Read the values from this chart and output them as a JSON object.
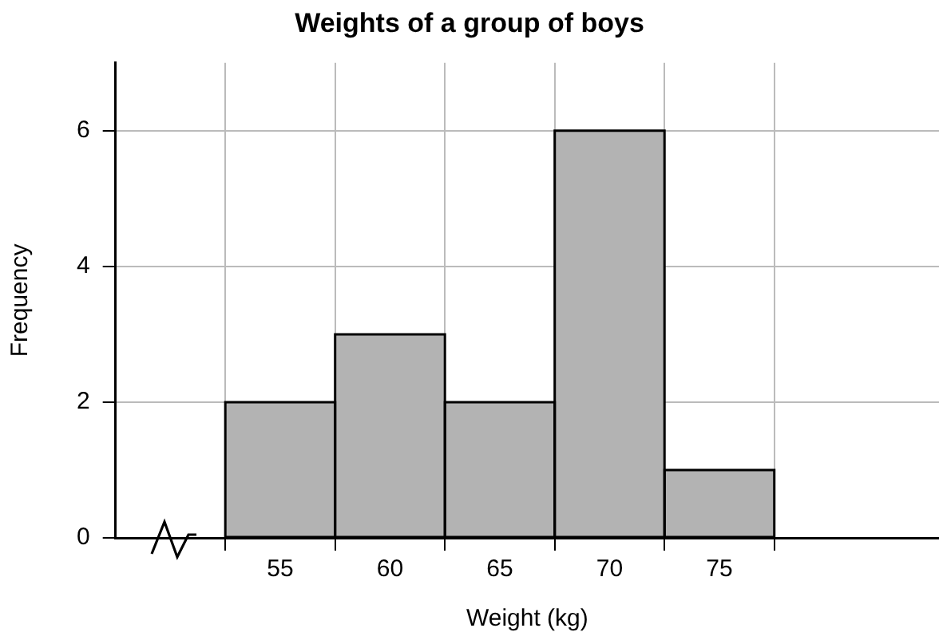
{
  "chart_data": {
    "type": "histogram",
    "title": "Weights of a group of boys",
    "xlabel": "Weight (kg)",
    "ylabel": "Frequency",
    "bins": [
      52.5,
      57.5,
      62.5,
      67.5,
      72.5,
      77.5
    ],
    "values": [
      2,
      3,
      2,
      6,
      1
    ],
    "color": "#b3b3b3",
    "xlim": [
      47.5,
      85
    ],
    "xticks": [
      55,
      60,
      65,
      70,
      75
    ],
    "ylim": [
      0,
      7
    ],
    "yticks": [
      0,
      2,
      4,
      6
    ],
    "grid": true,
    "legend": false
  }
}
